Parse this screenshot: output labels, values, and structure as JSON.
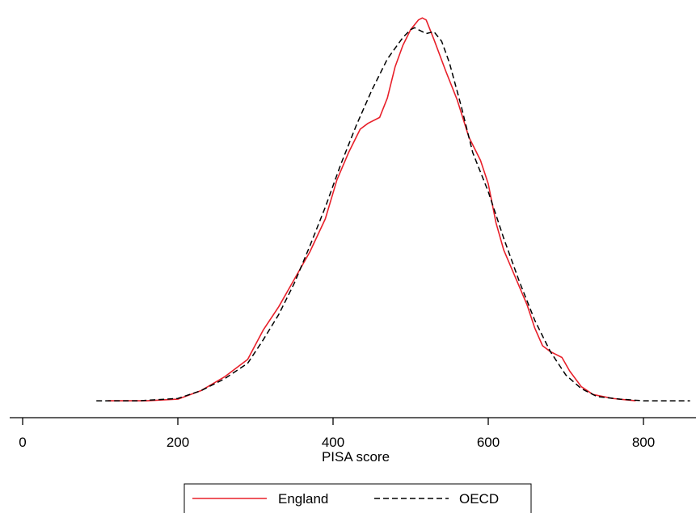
{
  "chart_data": {
    "type": "line",
    "xlabel": "PISA score",
    "ylabel": "",
    "xlim": [
      -5,
      860
    ],
    "ylim": [
      0,
      1
    ],
    "xticks": [
      0,
      200,
      400,
      600,
      800
    ],
    "grid": false,
    "legend_position": "bottom",
    "series": [
      {
        "name": "England",
        "color": "#e8202a",
        "dash": "solid",
        "x": [
          110,
          160,
          200,
          230,
          260,
          290,
          310,
          330,
          350,
          370,
          390,
          405,
          420,
          435,
          445,
          460,
          470,
          480,
          490,
          500,
          510,
          515,
          520,
          530,
          545,
          560,
          575,
          590,
          600,
          610,
          620,
          635,
          650,
          660,
          670,
          680,
          695,
          705,
          720,
          735,
          760,
          790
        ],
        "y": [
          0.004,
          0.004,
          0.008,
          0.03,
          0.065,
          0.11,
          0.185,
          0.245,
          0.315,
          0.385,
          0.47,
          0.57,
          0.64,
          0.7,
          0.715,
          0.73,
          0.78,
          0.86,
          0.915,
          0.955,
          0.98,
          0.985,
          0.98,
          0.93,
          0.85,
          0.775,
          0.68,
          0.62,
          0.56,
          0.46,
          0.39,
          0.32,
          0.25,
          0.19,
          0.145,
          0.13,
          0.115,
          0.08,
          0.04,
          0.02,
          0.01,
          0.004
        ]
      },
      {
        "name": "OECD",
        "color": "#000000",
        "dash": "dashed",
        "x": [
          95,
          150,
          200,
          230,
          260,
          290,
          310,
          330,
          350,
          370,
          390,
          410,
          430,
          450,
          470,
          490,
          500,
          505,
          520,
          530,
          540,
          550,
          565,
          580,
          600,
          620,
          640,
          660,
          680,
          700,
          720,
          740,
          770,
          800,
          830,
          860
        ],
        "y": [
          0.004,
          0.004,
          0.01,
          0.03,
          0.06,
          0.1,
          0.16,
          0.225,
          0.305,
          0.4,
          0.5,
          0.61,
          0.71,
          0.8,
          0.88,
          0.935,
          0.955,
          0.96,
          0.945,
          0.95,
          0.925,
          0.87,
          0.76,
          0.64,
          0.54,
          0.42,
          0.31,
          0.21,
          0.13,
          0.07,
          0.035,
          0.015,
          0.008,
          0.004,
          0.004,
          0.004
        ]
      }
    ]
  }
}
